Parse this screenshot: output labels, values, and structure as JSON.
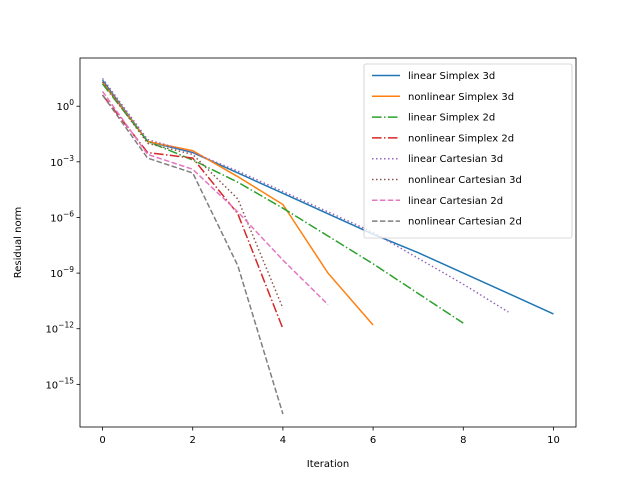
{
  "chart_data": {
    "type": "line",
    "title": "",
    "xlabel": "Iteration",
    "ylabel": "Residual norm",
    "xlim": [
      -0.5,
      10.5
    ],
    "ylim_log10": [
      -17.3,
      2.6
    ],
    "yscale": "log",
    "grid": false,
    "legend_placement": "top-right",
    "xticks": [
      0,
      2,
      4,
      6,
      8,
      10
    ],
    "yticks": [
      {
        "exp": 0,
        "label": "10^0"
      },
      {
        "exp": -3,
        "label": "10^-3"
      },
      {
        "exp": -6,
        "label": "10^-6"
      },
      {
        "exp": -9,
        "label": "10^-9"
      },
      {
        "exp": -12,
        "label": "10^-12"
      },
      {
        "exp": -15,
        "label": "10^-15"
      }
    ],
    "series": [
      {
        "name": "linear Simplex 3d",
        "color": "#1f77b4",
        "dash": "solid",
        "x": [
          0,
          1,
          2,
          3,
          4,
          5,
          6,
          7,
          8,
          9,
          10
        ],
        "y_log10": [
          1.4,
          -1.9,
          -2.5,
          -3.6,
          -4.7,
          -5.8,
          -6.9,
          -7.9,
          -9.0,
          -10.1,
          -11.2
        ]
      },
      {
        "name": "nonlinear Simplex 3d",
        "color": "#ff7f0e",
        "dash": "solid",
        "x": [
          0,
          1,
          2,
          3,
          4,
          5,
          6
        ],
        "y_log10": [
          1.3,
          -1.9,
          -2.4,
          -3.8,
          -5.3,
          -9.0,
          -11.8
        ]
      },
      {
        "name": "linear Simplex 2d",
        "color": "#2ca02c",
        "dash": "dashdot",
        "x": [
          0,
          1,
          2,
          3,
          4,
          5,
          6,
          7,
          8
        ],
        "y_log10": [
          1.2,
          -1.9,
          -2.9,
          -4.1,
          -5.5,
          -7.0,
          -8.5,
          -10.1,
          -11.7
        ]
      },
      {
        "name": "nonlinear Simplex 2d",
        "color": "#d62728",
        "dash": "dashdot",
        "x": [
          0,
          1,
          2,
          3,
          4
        ],
        "y_log10": [
          0.6,
          -2.5,
          -2.8,
          -5.8,
          -12.0
        ]
      },
      {
        "name": "linear Cartesian 3d",
        "color": "#9467bd",
        "dash": "dotted",
        "x": [
          0,
          1,
          2,
          3,
          4,
          5,
          6,
          7,
          8,
          9
        ],
        "y_log10": [
          1.5,
          -1.8,
          -2.5,
          -3.5,
          -4.6,
          -5.7,
          -6.8,
          -8.2,
          -9.6,
          -11.1
        ]
      },
      {
        "name": "nonlinear Cartesian 3d",
        "color": "#8c564b",
        "dash": "dotted",
        "x": [
          0,
          1,
          2,
          3,
          4
        ],
        "y_log10": [
          1.3,
          -2.0,
          -2.6,
          -5.0,
          -10.9
        ]
      },
      {
        "name": "linear Cartesian 2d",
        "color": "#e377c2",
        "dash": "dashed",
        "x": [
          0,
          1,
          2,
          3,
          4,
          5
        ],
        "y_log10": [
          0.8,
          -2.6,
          -3.4,
          -5.7,
          -8.3,
          -10.7
        ]
      },
      {
        "name": "nonlinear Cartesian 2d",
        "color": "#7f7f7f",
        "dash": "dashed",
        "x": [
          0,
          1,
          2,
          3,
          4
        ],
        "y_log10": [
          0.6,
          -2.8,
          -3.6,
          -8.6,
          -16.6
        ]
      }
    ]
  }
}
